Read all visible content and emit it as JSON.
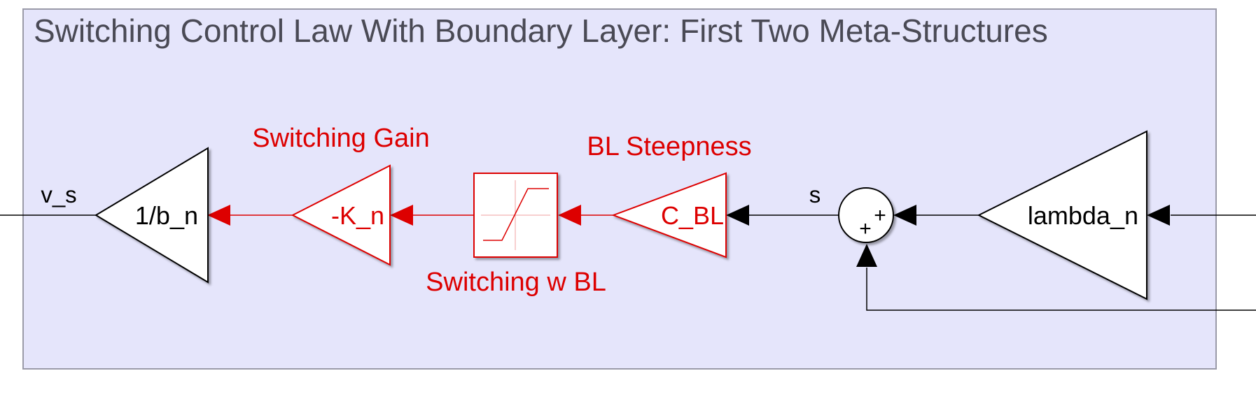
{
  "title": "Switching Control Law With Boundary Layer: First Two Meta-Structures",
  "colors": {
    "area_fill": "#e5e5fb",
    "area_border": "#9a9aa8",
    "red": "#dd0000",
    "black": "#000000"
  },
  "blocks": {
    "inv_bn": {
      "label": "1/b_n"
    },
    "k_n": {
      "label": "-K_n",
      "caption": "Switching Gain"
    },
    "saturation": {
      "caption": "Switching w BL"
    },
    "c_bl": {
      "label": "C_BL",
      "caption": "BL Steepness"
    },
    "sum": {
      "sign_right": "+",
      "sign_bottom": "+"
    },
    "lambda_n": {
      "label": "lambda_n"
    }
  },
  "signals": {
    "output": "v_s",
    "s": "s"
  }
}
